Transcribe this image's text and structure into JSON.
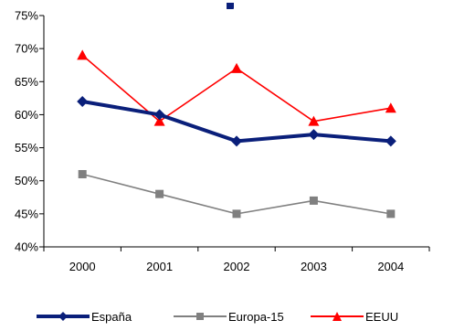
{
  "chart_data": {
    "type": "line",
    "categories": [
      "2000",
      "2001",
      "2002",
      "2003",
      "2004"
    ],
    "y_ticks": [
      "40%",
      "45%",
      "50%",
      "55%",
      "60%",
      "65%",
      "70%",
      "75%"
    ],
    "ylim": [
      40,
      75
    ],
    "grid": false,
    "legend_position": "bottom",
    "series": [
      {
        "name": "España",
        "values": [
          62,
          60,
          56,
          57,
          56
        ],
        "color": "#0a1f7a",
        "marker": "diamond"
      },
      {
        "name": "Europa-15",
        "values": [
          51,
          48,
          45,
          47,
          45
        ],
        "color": "#808080",
        "marker": "square"
      },
      {
        "name": "EEUU",
        "values": [
          69,
          59,
          67,
          59,
          61
        ],
        "color": "#ff0000",
        "marker": "triangle"
      }
    ]
  }
}
